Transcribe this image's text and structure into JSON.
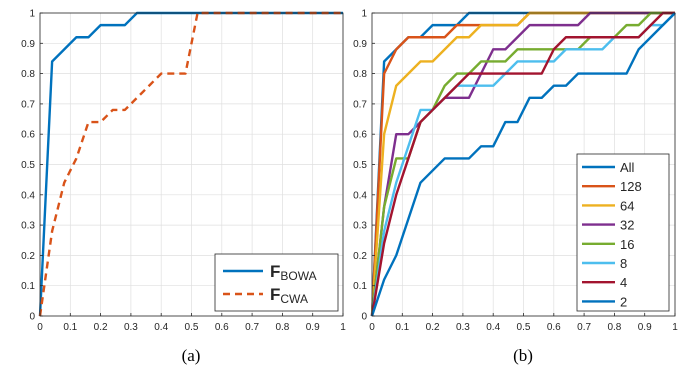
{
  "chart_data": [
    {
      "type": "line",
      "caption": "(a)",
      "xlim": [
        0,
        1
      ],
      "ylim": [
        0,
        1
      ],
      "grid": true,
      "xticks": [
        "0",
        "0.1",
        "0.2",
        "0.3",
        "0.4",
        "0.5",
        "0.6",
        "0.7",
        "0.8",
        "0.9",
        "1"
      ],
      "yticks": [
        "0",
        "0.1",
        "0.2",
        "0.3",
        "0.4",
        "0.5",
        "0.6",
        "0.7",
        "0.8",
        "0.9",
        "1"
      ],
      "legend_position": "bottom-right",
      "series": [
        {
          "name_main": "F",
          "name_sub": "BOWA",
          "color": "#0072BD",
          "dash": false,
          "x": [
            0,
            0.04,
            0.08,
            0.12,
            0.16,
            0.2,
            0.28,
            0.32,
            1.0
          ],
          "y": [
            0,
            0.84,
            0.88,
            0.92,
            0.92,
            0.96,
            0.96,
            1.0,
            1.0
          ]
        },
        {
          "name_main": "F",
          "name_sub": "CWA",
          "color": "#D95319",
          "dash": true,
          "x": [
            0,
            0.04,
            0.08,
            0.12,
            0.16,
            0.2,
            0.24,
            0.28,
            0.32,
            0.36,
            0.4,
            0.44,
            0.48,
            0.52,
            1.0
          ],
          "y": [
            0,
            0.28,
            0.44,
            0.52,
            0.64,
            0.64,
            0.68,
            0.68,
            0.72,
            0.76,
            0.8,
            0.8,
            0.8,
            1.0,
            1.0
          ]
        }
      ]
    },
    {
      "type": "line",
      "caption": "(b)",
      "xlim": [
        0,
        1
      ],
      "ylim": [
        0,
        1
      ],
      "grid": true,
      "xticks": [
        "0",
        "0.1",
        "0.2",
        "0.3",
        "0.4",
        "0.5",
        "0.6",
        "0.7",
        "0.8",
        "0.9",
        "1"
      ],
      "yticks": [
        "0",
        "0.1",
        "0.2",
        "0.3",
        "0.4",
        "0.5",
        "0.6",
        "0.7",
        "0.8",
        "0.9",
        "1"
      ],
      "legend_position": "bottom-right",
      "series": [
        {
          "name": "All",
          "color": "#0072BD",
          "x": [
            0,
            0.04,
            0.08,
            0.12,
            0.16,
            0.2,
            0.24,
            0.28,
            0.32,
            1.0
          ],
          "y": [
            0,
            0.84,
            0.88,
            0.92,
            0.92,
            0.96,
            0.96,
            0.96,
            1.0,
            1.0
          ]
        },
        {
          "name": "128",
          "color": "#D95319",
          "x": [
            0,
            0.04,
            0.08,
            0.12,
            0.16,
            0.2,
            0.24,
            0.28,
            0.36,
            0.4,
            0.48,
            0.52,
            1.0
          ],
          "y": [
            0,
            0.8,
            0.88,
            0.92,
            0.92,
            0.92,
            0.92,
            0.96,
            0.96,
            0.96,
            0.96,
            1.0,
            1.0
          ]
        },
        {
          "name": "64",
          "color": "#EDB120",
          "x": [
            0,
            0.04,
            0.08,
            0.12,
            0.16,
            0.2,
            0.24,
            0.28,
            0.32,
            0.36,
            0.4,
            0.44,
            0.48,
            0.52,
            0.56,
            1.0
          ],
          "y": [
            0,
            0.6,
            0.76,
            0.8,
            0.84,
            0.84,
            0.88,
            0.92,
            0.92,
            0.96,
            0.96,
            0.96,
            0.96,
            1.0,
            1.0,
            1.0
          ]
        },
        {
          "name": "32",
          "color": "#7E2F8E",
          "x": [
            0,
            0.04,
            0.08,
            0.12,
            0.16,
            0.2,
            0.24,
            0.28,
            0.32,
            0.36,
            0.4,
            0.44,
            0.48,
            0.52,
            0.56,
            0.6,
            0.64,
            0.68,
            0.72,
            1.0
          ],
          "y": [
            0,
            0.36,
            0.6,
            0.6,
            0.64,
            0.68,
            0.72,
            0.72,
            0.72,
            0.8,
            0.88,
            0.88,
            0.92,
            0.96,
            0.96,
            0.96,
            0.96,
            0.96,
            1.0,
            1.0
          ]
        },
        {
          "name": "16",
          "color": "#77AC30",
          "x": [
            0,
            0.04,
            0.08,
            0.12,
            0.16,
            0.2,
            0.24,
            0.28,
            0.32,
            0.36,
            0.4,
            0.44,
            0.48,
            0.52,
            0.56,
            0.6,
            0.64,
            0.68,
            0.72,
            0.76,
            0.8,
            0.84,
            0.88,
            0.92,
            1.0
          ],
          "y": [
            0,
            0.36,
            0.52,
            0.52,
            0.64,
            0.68,
            0.76,
            0.8,
            0.8,
            0.84,
            0.84,
            0.84,
            0.88,
            0.88,
            0.88,
            0.88,
            0.88,
            0.88,
            0.92,
            0.92,
            0.92,
            0.96,
            0.96,
            1.0,
            1.0
          ]
        },
        {
          "name": "8",
          "color": "#4DBEEE",
          "x": [
            0,
            0.04,
            0.08,
            0.12,
            0.16,
            0.2,
            0.24,
            0.28,
            0.32,
            0.36,
            0.4,
            0.44,
            0.48,
            0.52,
            0.56,
            0.6,
            0.64,
            0.68,
            0.72,
            0.76,
            0.8,
            0.84,
            0.88,
            0.92,
            0.96,
            1.0
          ],
          "y": [
            0,
            0.28,
            0.44,
            0.56,
            0.68,
            0.68,
            0.72,
            0.76,
            0.76,
            0.76,
            0.76,
            0.8,
            0.84,
            0.84,
            0.84,
            0.84,
            0.88,
            0.88,
            0.88,
            0.88,
            0.92,
            0.92,
            0.92,
            0.96,
            0.96,
            1.0
          ]
        },
        {
          "name": "4",
          "color": "#A2142F",
          "x": [
            0,
            0.04,
            0.08,
            0.12,
            0.16,
            0.2,
            0.24,
            0.28,
            0.32,
            0.36,
            0.4,
            0.44,
            0.48,
            0.52,
            0.56,
            0.6,
            0.64,
            0.68,
            0.72,
            0.76,
            0.8,
            0.84,
            0.88,
            0.92,
            0.96,
            1.0
          ],
          "y": [
            0,
            0.24,
            0.4,
            0.52,
            0.64,
            0.68,
            0.72,
            0.76,
            0.8,
            0.8,
            0.8,
            0.8,
            0.8,
            0.8,
            0.8,
            0.88,
            0.92,
            0.92,
            0.92,
            0.92,
            0.92,
            0.92,
            0.92,
            0.96,
            1.0,
            1.0
          ]
        },
        {
          "name": "2",
          "color": "#0072BD",
          "x": [
            0,
            0.04,
            0.08,
            0.12,
            0.16,
            0.2,
            0.24,
            0.28,
            0.32,
            0.36,
            0.4,
            0.44,
            0.48,
            0.52,
            0.56,
            0.6,
            0.64,
            0.68,
            0.72,
            0.76,
            0.8,
            0.84,
            0.88,
            0.92,
            0.96,
            1.0
          ],
          "y": [
            0,
            0.12,
            0.2,
            0.32,
            0.44,
            0.48,
            0.52,
            0.52,
            0.52,
            0.56,
            0.56,
            0.64,
            0.64,
            0.72,
            0.72,
            0.76,
            0.76,
            0.8,
            0.8,
            0.8,
            0.8,
            0.8,
            0.88,
            0.92,
            0.96,
            1.0
          ]
        }
      ]
    }
  ]
}
